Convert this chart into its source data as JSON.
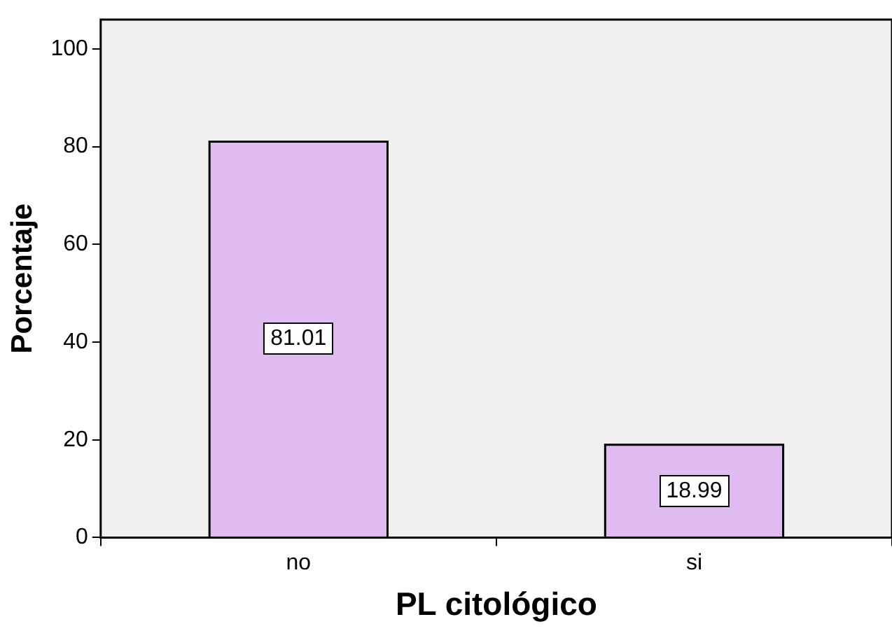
{
  "chart_data": {
    "type": "bar",
    "xlabel": "PL citológico",
    "ylabel": "Porcentaje",
    "categories": [
      "no",
      "si"
    ],
    "values": [
      81.01,
      18.99
    ],
    "color": "#dfbbf2",
    "ylim": [
      0,
      106
    ],
    "yticks": [
      0,
      20,
      40,
      60,
      80,
      100
    ],
    "grid": false,
    "legend": false,
    "data_labels": true
  }
}
